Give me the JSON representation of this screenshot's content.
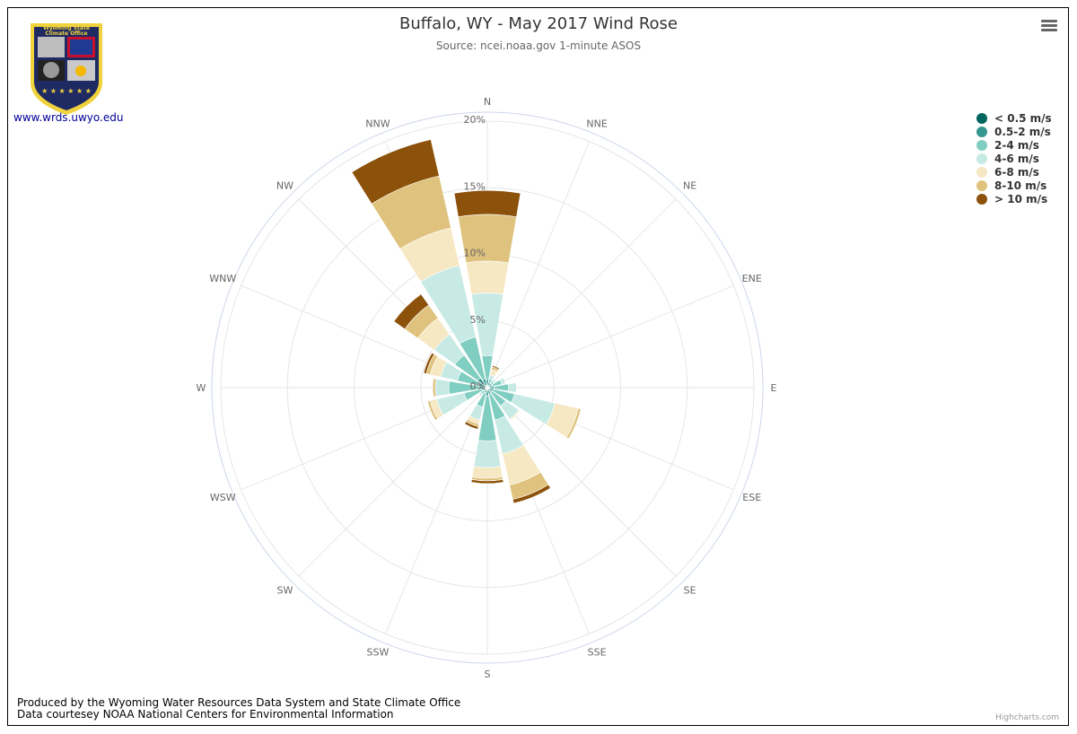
{
  "header": {
    "title": "Buffalo, WY - May 2017 Wind Rose",
    "subtitle": "Source: ncei.noaa.gov 1-minute ASOS"
  },
  "logo": {
    "line1": "Wyoming State",
    "line2": "Climate Office",
    "link_text": "www.wrds.uwyo.edu",
    "colors": {
      "shield": "#1f2a63",
      "border": "#f0d23c"
    }
  },
  "menu_icon": "hamburger-menu-icon",
  "footer": {
    "line1": "Produced by the Wyoming Water Resources Data System and State Climate Office",
    "line2": "Data courtesey NOAA National Centers for Environmental Information"
  },
  "credits": "Highcharts.com",
  "chart_data": {
    "type": "bar",
    "polar": true,
    "stacked": true,
    "title": "Buffalo, WY - May 2017 Wind Rose",
    "subtitle": "Source: ncei.noaa.gov 1-minute ASOS",
    "categories": [
      "N",
      "NNE",
      "NE",
      "ENE",
      "E",
      "ESE",
      "SE",
      "SSE",
      "S",
      "SSW",
      "SW",
      "WSW",
      "W",
      "WNW",
      "NW",
      "NNW"
    ],
    "radial_axis": {
      "min": 0,
      "max": 20,
      "unit": "%",
      "ticks": [
        0,
        5,
        10,
        15,
        20
      ],
      "tick_labels": [
        "0%",
        "5%",
        "10%",
        "15%",
        "20%"
      ]
    },
    "legend_position": "top-right",
    "series": [
      {
        "name": "< 0.5 m/s",
        "color": "#01665e",
        "values": [
          0.1,
          0.1,
          0.1,
          0.1,
          0.1,
          0.1,
          0.1,
          0.1,
          0.1,
          0.1,
          0.1,
          0.1,
          0.1,
          0.1,
          0.1,
          0.1
        ]
      },
      {
        "name": "0.5-2 m/s",
        "color": "#35978f",
        "values": [
          0.5,
          0.3,
          0.3,
          0.3,
          0.4,
          0.4,
          0.3,
          0.4,
          0.5,
          0.3,
          0.2,
          0.3,
          0.5,
          0.6,
          0.8,
          0.6
        ]
      },
      {
        "name": "2-4 m/s",
        "color": "#80cdc1",
        "values": [
          1.8,
          0.3,
          0.2,
          0.7,
          1.1,
          1.6,
          1.3,
          2.0,
          3.4,
          1.1,
          0.3,
          1.4,
          2.3,
          1.6,
          2.1,
          3.2
        ]
      },
      {
        "name": "4-6 m/s",
        "color": "#c7eae5",
        "values": [
          4.7,
          0.3,
          0.2,
          0.3,
          0.6,
          3.1,
          1.2,
          2.6,
          2.0,
          1.0,
          0.2,
          2.1,
          1.0,
          1.3,
          1.9,
          5.5
        ]
      },
      {
        "name": "6-8 m/s",
        "color": "#f6e8c3",
        "values": [
          2.4,
          0.4,
          0.0,
          0.0,
          0.0,
          1.8,
          0.1,
          2.4,
          0.8,
          0.3,
          0.0,
          0.5,
          0.0,
          0.8,
          1.5,
          2.9
        ]
      },
      {
        "name": "8-10 m/s",
        "color": "#dfc27d",
        "values": [
          3.5,
          0.2,
          0.0,
          0.0,
          0.0,
          0.2,
          0.0,
          1.1,
          0.2,
          0.2,
          0.0,
          0.2,
          0.2,
          0.3,
          1.2,
          4.0
        ]
      },
      {
        "name": "> 10 m/s",
        "color": "#8c510a",
        "values": [
          1.8,
          0.1,
          0.0,
          0.0,
          0.0,
          0.0,
          0.0,
          0.3,
          0.2,
          0.2,
          0.0,
          0.0,
          0.0,
          0.2,
          1.0,
          2.8
        ]
      }
    ]
  }
}
